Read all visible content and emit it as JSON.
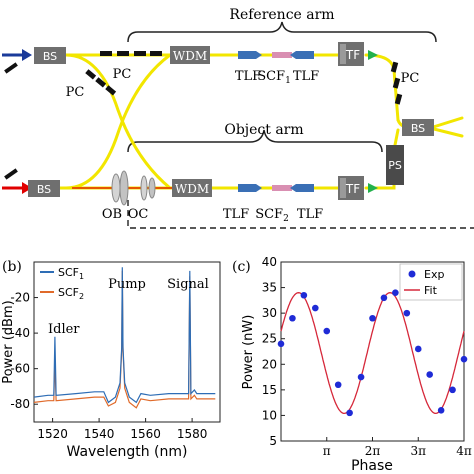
{
  "schematic": {
    "reference_arm": "Reference arm",
    "object_arm": "Object arm",
    "bs": "BS",
    "pc": "PC",
    "wdm": "WDM",
    "tlf": "TLF",
    "scf": "SCF",
    "scf1_sub": "1",
    "scf2_sub": "2",
    "tf": "TF",
    "ps": "PS",
    "ob": "OB",
    "oc": "OC",
    "colors": {
      "fiber": "#f2e600",
      "bs_box": "#6f6f6f",
      "wdm_box": "#6f6f6f",
      "pump_laser": "#e00000",
      "input_arrow": "#1a3a9a",
      "output_arrow": "#22b14c",
      "tlf_blue": "#3a6fb5",
      "scf_pink": "#d98fb2"
    }
  },
  "panel_b": {
    "panel_label": "(b)",
    "ylabel": "Power (dBm)",
    "xlabel": "Wavelength (nm)",
    "annotations": [
      "Idler",
      "Pump",
      "Signal"
    ],
    "legend": [
      {
        "name": "SCF",
        "sub": "1",
        "color": "#2e6db5"
      },
      {
        "name": "SCF",
        "sub": "2",
        "color": "#e06a2a"
      }
    ]
  },
  "panel_c": {
    "panel_label": "(c)",
    "ylabel": "Power (nW)",
    "xlabel": "Phase",
    "legend": [
      {
        "name": "Exp",
        "color": "#1f2bd6"
      },
      {
        "name": "Fit",
        "color": "#d6283a"
      }
    ]
  },
  "chart_data": [
    {
      "type": "line",
      "xlabel": "Wavelength (nm)",
      "ylabel": "Power (dBm)",
      "xlim": [
        1512,
        1592
      ],
      "ylim": [
        -90,
        0
      ],
      "x_ticks": [
        1520,
        1540,
        1560,
        1580
      ],
      "y_ticks": [
        -80,
        -60,
        -40,
        -20
      ],
      "series": [
        {
          "name": "SCF1",
          "color": "#2e6db5",
          "x": [
            1512,
            1518,
            1520.5,
            1521,
            1521.5,
            1530,
            1538,
            1542,
            1544,
            1547,
            1549,
            1549.7,
            1550,
            1550.3,
            1551,
            1553,
            1556,
            1558,
            1562,
            1570,
            1576,
            1578.5,
            1579,
            1579.5,
            1581,
            1582,
            1586,
            1590
          ],
          "y": [
            -76,
            -75,
            -75,
            -42,
            -75,
            -74,
            -73,
            -73,
            -79,
            -76,
            -68,
            -48,
            -3,
            -48,
            -68,
            -76,
            -79,
            -74,
            -75,
            -74,
            -74,
            -74,
            -5,
            -74,
            -72,
            -74,
            -74,
            -74
          ]
        },
        {
          "name": "SCF2",
          "color": "#e06a2a",
          "x": [
            1512,
            1518,
            1520.5,
            1521,
            1521.5,
            1530,
            1538,
            1542,
            1544,
            1547,
            1549,
            1549.7,
            1550,
            1550.3,
            1551,
            1553,
            1556,
            1558,
            1562,
            1570,
            1576,
            1578.5,
            1579,
            1579.5,
            1581,
            1582,
            1586,
            1590
          ],
          "y": [
            -79,
            -78,
            -78,
            -55,
            -78,
            -77,
            -76,
            -76,
            -81,
            -79,
            -71,
            -50,
            -5,
            -50,
            -71,
            -79,
            -82,
            -77,
            -78,
            -77,
            -77,
            -77,
            -8,
            -77,
            -75,
            -77,
            -77,
            -77
          ]
        }
      ]
    },
    {
      "type": "scatter",
      "xlabel": "Phase",
      "ylabel": "Power (nW)",
      "xlim": [
        0,
        12.566
      ],
      "ylim": [
        5,
        40
      ],
      "x_tick_values": [
        3.1416,
        6.2832,
        9.4248,
        12.566
      ],
      "x_tick_labels": [
        "π",
        "2π",
        "3π",
        "4π"
      ],
      "y_ticks": [
        5,
        10,
        15,
        20,
        25,
        30,
        35,
        40
      ],
      "series": [
        {
          "name": "Exp",
          "color": "#1f2bd6",
          "x": [
            0,
            0.785,
            1.571,
            2.356,
            3.142,
            3.927,
            4.712,
            5.498,
            6.283,
            7.069,
            7.854,
            8.639,
            9.425,
            10.21,
            10.996,
            11.781,
            12.566
          ],
          "y": [
            24,
            29,
            33.5,
            31,
            26.5,
            16,
            10.5,
            17.5,
            29,
            33,
            34,
            30,
            23,
            18,
            11,
            15,
            21
          ]
        },
        {
          "name": "Fit",
          "color": "#d6283a",
          "amplitude": 11.8,
          "offset": 22.2,
          "phase_of_peak": 1.2,
          "x_range": [
            0,
            12.566
          ]
        }
      ]
    }
  ]
}
